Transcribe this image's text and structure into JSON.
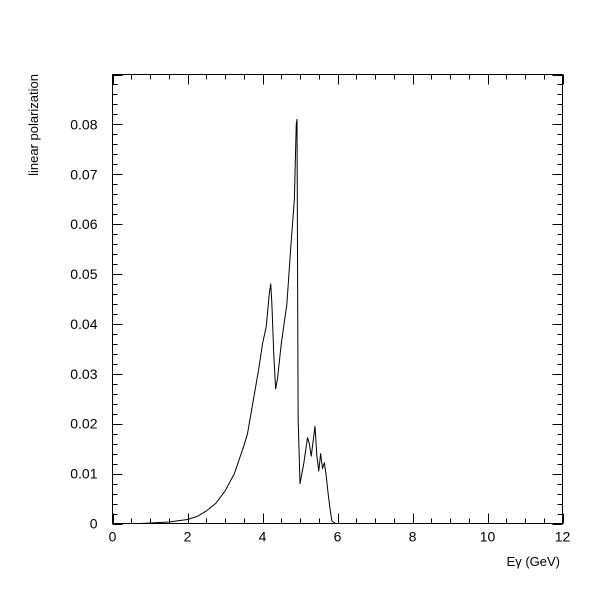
{
  "chart_data": {
    "type": "line",
    "title": "",
    "xlabel": "Eγ (GeV)",
    "ylabel": "linear polarization",
    "xlim": [
      0,
      12
    ],
    "ylim": [
      0,
      0.09
    ],
    "grid": false,
    "x_tick_labels": [
      "0",
      "2",
      "4",
      "6",
      "8",
      "10",
      "12"
    ],
    "y_tick_labels": [
      "0",
      "0.01",
      "0.02",
      "0.03",
      "0.04",
      "0.05",
      "0.06",
      "0.07",
      "0.08"
    ],
    "series": [
      {
        "color": "#000000",
        "x": [
          0.75,
          1.0,
          1.5,
          2.0,
          2.25,
          2.5,
          2.75,
          3.0,
          3.25,
          3.5,
          3.6,
          3.75,
          3.9,
          4.0,
          4.1,
          4.18,
          4.22,
          4.25,
          4.3,
          4.35,
          4.4,
          4.5,
          4.65,
          4.75,
          4.85,
          4.9,
          4.92,
          4.95,
          5.0,
          5.1,
          5.2,
          5.25,
          5.3,
          5.35,
          5.4,
          5.45,
          5.5,
          5.55,
          5.6,
          5.65,
          5.7,
          5.75,
          5.8,
          5.85,
          5.95
        ],
        "y": [
          0.0,
          0.0001,
          0.0003,
          0.0008,
          0.0014,
          0.0025,
          0.004,
          0.0065,
          0.01,
          0.0155,
          0.018,
          0.0245,
          0.031,
          0.036,
          0.0395,
          0.046,
          0.048,
          0.044,
          0.034,
          0.027,
          0.029,
          0.036,
          0.044,
          0.055,
          0.065,
          0.08,
          0.081,
          0.021,
          0.008,
          0.012,
          0.0172,
          0.016,
          0.0135,
          0.0165,
          0.0195,
          0.0135,
          0.0105,
          0.014,
          0.011,
          0.0122,
          0.0095,
          0.006,
          0.003,
          0.0005,
          0.0
        ]
      }
    ]
  }
}
